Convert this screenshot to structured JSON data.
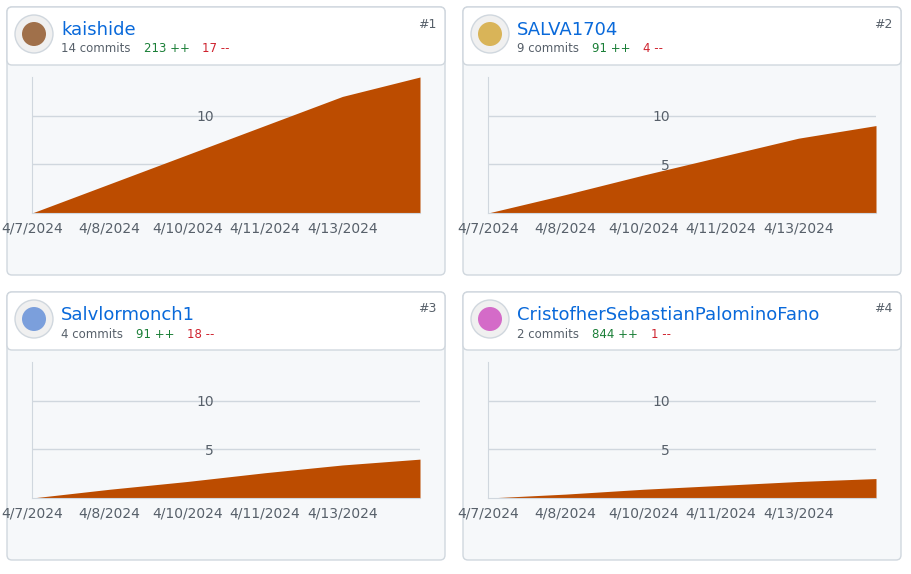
{
  "chart_data": [
    {
      "type": "area",
      "title": "kaishide",
      "annotations": [
        "14 commits",
        "213 ++",
        "17 --",
        "#1"
      ],
      "categories": [
        "4/7/2024",
        "4/8/2024",
        "4/10/2024",
        "4/11/2024",
        "4/13/2024",
        null
      ],
      "values": [
        0,
        3,
        6,
        9,
        12,
        14
      ],
      "color": "#bc4c00",
      "ylim": [
        0,
        14
      ],
      "yticks": [
        5,
        10
      ],
      "grid": true
    },
    {
      "type": "area",
      "title": "SALVA1704",
      "annotations": [
        "9 commits",
        "91 ++",
        "4 --",
        "#2"
      ],
      "categories": [
        "4/7/2024",
        "4/8/2024",
        "4/10/2024",
        "4/11/2024",
        "4/13/2024",
        null
      ],
      "values": [
        0,
        1.9,
        3.9,
        5.8,
        7.7,
        9
      ],
      "color": "#bc4c00",
      "ylim": [
        0,
        14
      ],
      "yticks": [
        5,
        10
      ],
      "grid": true
    },
    {
      "type": "area",
      "title": "Salvlormonch1",
      "annotations": [
        "4 commits",
        "91 ++",
        "18 --",
        "#3"
      ],
      "categories": [
        "4/7/2024",
        "4/8/2024",
        "4/10/2024",
        "4/11/2024",
        "4/13/2024",
        null
      ],
      "values": [
        0,
        0.9,
        1.7,
        2.6,
        3.4,
        4
      ],
      "color": "#bc4c00",
      "ylim": [
        0,
        14
      ],
      "yticks": [
        5,
        10
      ],
      "grid": true
    },
    {
      "type": "area",
      "title": "CristofherSebastianPalominoFano",
      "annotations": [
        "2 commits",
        "844 ++",
        "1 --",
        "#4"
      ],
      "categories": [
        "4/7/2024",
        "4/8/2024",
        "4/10/2024",
        "4/11/2024",
        "4/13/2024",
        null
      ],
      "values": [
        0,
        0.4,
        0.9,
        1.3,
        1.7,
        2
      ],
      "color": "#bc4c00",
      "ylim": [
        0,
        14
      ],
      "yticks": [
        5,
        10
      ],
      "grid": true
    }
  ]
}
